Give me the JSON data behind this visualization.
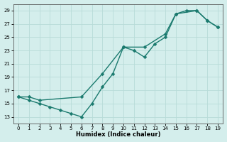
{
  "xlabel": "Humidex (Indice chaleur)",
  "curve1_x": [
    0,
    1,
    2,
    3,
    4,
    5,
    6,
    7,
    8,
    9,
    10,
    11,
    12,
    13,
    14,
    15,
    16,
    17,
    18,
    19
  ],
  "curve1_y": [
    16,
    15.5,
    15,
    14.5,
    14,
    13.5,
    13,
    15,
    17.5,
    19.5,
    23.5,
    23,
    22,
    24,
    25,
    28.5,
    29,
    29,
    27.5,
    26.5
  ],
  "curve2_x": [
    0,
    1,
    2,
    6,
    8,
    10,
    12,
    14,
    15,
    17,
    18,
    19
  ],
  "curve2_y": [
    16,
    16,
    15.5,
    16,
    19.5,
    23.5,
    23.5,
    25.5,
    28.5,
    29,
    27.5,
    26.5
  ],
  "xlim": [
    -0.5,
    19.5
  ],
  "ylim": [
    12,
    30
  ],
  "yticks": [
    13,
    15,
    17,
    19,
    21,
    23,
    25,
    27,
    29
  ],
  "xticks": [
    0,
    1,
    2,
    3,
    4,
    5,
    6,
    7,
    8,
    9,
    10,
    11,
    12,
    13,
    14,
    15,
    16,
    17,
    18,
    19
  ],
  "line_color": "#1a7a6e",
  "bg_color": "#d4eeec",
  "grid_color": "#b8dbd8",
  "marker_size": 2.5,
  "line_width": 1.0
}
